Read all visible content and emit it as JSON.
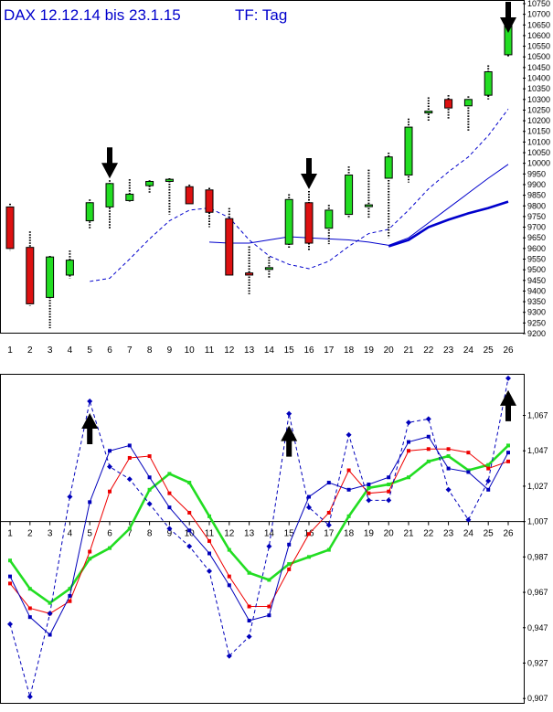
{
  "title": "DAX 12.12.14 bis 23.1.15",
  "timeframe": "TF: Tag",
  "colors": {
    "up": "#22dd22",
    "down": "#dd1111",
    "ma": "#0000cc",
    "osc_blue": "#0000bb",
    "osc_red": "#ee0000",
    "osc_green": "#22dd22",
    "arrow": "#000000"
  },
  "chart_data": [
    {
      "type": "candlestick",
      "title": "DAX 12.12.14 bis 23.1.15",
      "subtitle": "TF: Tag",
      "x": [
        1,
        2,
        3,
        4,
        5,
        6,
        7,
        8,
        9,
        10,
        11,
        12,
        13,
        14,
        15,
        16,
        17,
        18,
        19,
        20,
        21,
        22,
        23,
        24,
        25,
        26
      ],
      "x_ticks": [
        "1",
        "2",
        "3",
        "4",
        "5",
        "6",
        "7",
        "8",
        "9",
        "10",
        "11",
        "12",
        "13",
        "14",
        "15",
        "16",
        "17",
        "18",
        "19",
        "20",
        "21",
        "22",
        "23",
        "24",
        "25",
        "26"
      ],
      "ylim": [
        9200,
        10750
      ],
      "y_ticks": [
        "9200",
        "9250",
        "9300",
        "9350",
        "9400",
        "9450",
        "9500",
        "9550",
        "9600",
        "9650",
        "9700",
        "9750",
        "9800",
        "9850",
        "9900",
        "9950",
        "10000",
        "10050",
        "10100",
        "10150",
        "10200",
        "10250",
        "10300",
        "10350",
        "10400",
        "10450",
        "10500",
        "10550",
        "10600",
        "10650",
        "10700",
        "10750"
      ],
      "candles": [
        {
          "x": 1,
          "open": 9795,
          "high": 9810,
          "low": 9590,
          "close": 9600
        },
        {
          "x": 2,
          "open": 9605,
          "high": 9680,
          "low": 9330,
          "close": 9340
        },
        {
          "x": 3,
          "open": 9370,
          "high": 9565,
          "low": 9225,
          "close": 9560
        },
        {
          "x": 4,
          "open": 9475,
          "high": 9590,
          "low": 9460,
          "close": 9545
        },
        {
          "x": 5,
          "open": 9730,
          "high": 9830,
          "low": 9690,
          "close": 9815
        },
        {
          "x": 6,
          "open": 9795,
          "high": 9920,
          "low": 9690,
          "close": 9905
        },
        {
          "x": 7,
          "open": 9825,
          "high": 9925,
          "low": 9820,
          "close": 9855
        },
        {
          "x": 8,
          "open": 9895,
          "high": 9920,
          "low": 9860,
          "close": 9915
        },
        {
          "x": 9,
          "open": 9915,
          "high": 9930,
          "low": 9760,
          "close": 9925
        },
        {
          "x": 10,
          "open": 9890,
          "high": 9900,
          "low": 9810,
          "close": 9810
        },
        {
          "x": 11,
          "open": 9875,
          "high": 9885,
          "low": 9700,
          "close": 9770
        },
        {
          "x": 12,
          "open": 9740,
          "high": 9790,
          "low": 9470,
          "close": 9475
        },
        {
          "x": 13,
          "open": 9485,
          "high": 9610,
          "low": 9385,
          "close": 9475
        },
        {
          "x": 14,
          "open": 9510,
          "high": 9560,
          "low": 9460,
          "close": 9510
        },
        {
          "x": 15,
          "open": 9620,
          "high": 9855,
          "low": 9600,
          "close": 9830
        },
        {
          "x": 16,
          "open": 9815,
          "high": 9870,
          "low": 9590,
          "close": 9625
        },
        {
          "x": 17,
          "open": 9695,
          "high": 9805,
          "low": 9620,
          "close": 9780
        },
        {
          "x": 18,
          "open": 9760,
          "high": 9985,
          "low": 9740,
          "close": 9945
        },
        {
          "x": 19,
          "open": 9805,
          "high": 9970,
          "low": 9740,
          "close": 9805
        },
        {
          "x": 20,
          "open": 9930,
          "high": 10050,
          "low": 9650,
          "close": 10030
        },
        {
          "x": 21,
          "open": 9945,
          "high": 10210,
          "low": 9910,
          "close": 10170
        },
        {
          "x": 22,
          "open": 10240,
          "high": 10310,
          "low": 10200,
          "close": 10245
        },
        {
          "x": 23,
          "open": 10300,
          "high": 10320,
          "low": 10210,
          "close": 10260
        },
        {
          "x": 24,
          "open": 10270,
          "high": 10315,
          "low": 10150,
          "close": 10300
        },
        {
          "x": 25,
          "open": 10320,
          "high": 10460,
          "low": 10300,
          "close": 10430
        },
        {
          "x": 26,
          "open": 10510,
          "high": 10715,
          "low": 10500,
          "close": 10650
        }
      ],
      "series": [
        {
          "style": "dashed",
          "color": "#0000cc",
          "x": [
            5,
            6,
            7,
            8,
            9,
            10,
            11,
            12,
            13,
            14,
            15,
            16,
            17,
            18,
            19,
            20,
            21,
            22,
            23,
            24,
            25,
            26
          ],
          "values": [
            9445,
            9460,
            9550,
            9645,
            9730,
            9780,
            9790,
            9745,
            9640,
            9565,
            9525,
            9505,
            9540,
            9610,
            9670,
            9690,
            9780,
            9880,
            9960,
            10030,
            10130,
            10255
          ]
        },
        {
          "style": "thin",
          "color": "#0000cc",
          "x": [
            11,
            12,
            13,
            14,
            15,
            16,
            17,
            18,
            19,
            20,
            21,
            22,
            23,
            24,
            25,
            26
          ],
          "values": [
            9630,
            9625,
            9625,
            9640,
            9655,
            9650,
            9645,
            9640,
            9630,
            9615,
            9650,
            9720,
            9790,
            9860,
            9930,
            9995
          ]
        },
        {
          "style": "thick",
          "color": "#0000cc",
          "x": [
            20,
            21,
            22,
            23,
            24,
            25,
            26
          ],
          "values": [
            9610,
            9640,
            9700,
            9735,
            9765,
            9790,
            9820
          ]
        }
      ],
      "markers": [
        {
          "type": "arrow-down",
          "x": 6
        },
        {
          "type": "arrow-down",
          "x": 16
        },
        {
          "type": "arrow-down",
          "x": 26
        }
      ]
    },
    {
      "type": "line",
      "x": [
        1,
        2,
        3,
        4,
        5,
        6,
        7,
        8,
        9,
        10,
        11,
        12,
        13,
        14,
        15,
        16,
        17,
        18,
        19,
        20,
        21,
        22,
        23,
        24,
        25,
        26
      ],
      "x_ticks": [
        "1",
        "2",
        "3",
        "4",
        "5",
        "6",
        "7",
        "8",
        "9",
        "10",
        "11",
        "12",
        "13",
        "14",
        "15",
        "16",
        "17",
        "18",
        "19",
        "20",
        "21",
        "22",
        "23",
        "24",
        "25",
        "26"
      ],
      "ylim": [
        0.904,
        1.09
      ],
      "y_ticks": [
        "0,907",
        "0,927",
        "0,947",
        "0,967",
        "0,987",
        "1,007",
        "1,027",
        "1,047",
        "1,067"
      ],
      "baseline": 1.007,
      "series": [
        {
          "style": "dashed-markers",
          "color": "#0000bb",
          "values": [
            0.949,
            0.908,
            0.955,
            1.021,
            1.075,
            1.038,
            1.031,
            1.017,
            1.003,
            0.993,
            0.979,
            0.931,
            0.942,
            0.993,
            1.068,
            1.015,
            1.005,
            1.056,
            1.019,
            1.019,
            1.063,
            1.065,
            1.025,
            1.008,
            1.03,
            1.088
          ]
        },
        {
          "style": "solid-markers",
          "color": "#0000bb",
          "values": [
            0.976,
            0.953,
            0.943,
            0.965,
            1.018,
            1.047,
            1.05,
            1.032,
            1.015,
            1.002,
            0.989,
            0.971,
            0.951,
            0.954,
            0.994,
            1.021,
            1.029,
            1.025,
            1.028,
            1.032,
            1.052,
            1.055,
            1.037,
            1.035,
            1.025,
            1.046
          ]
        },
        {
          "style": "solid-markers",
          "color": "#ee0000",
          "values": [
            0.972,
            0.958,
            0.955,
            0.962,
            0.99,
            1.024,
            1.043,
            1.044,
            1.023,
            1.012,
            0.996,
            0.976,
            0.959,
            0.959,
            0.98,
            1.0,
            1.012,
            1.036,
            1.023,
            1.024,
            1.047,
            1.048,
            1.048,
            1.046,
            1.037,
            1.041
          ]
        },
        {
          "style": "thick",
          "color": "#22dd22",
          "values": [
            0.985,
            0.969,
            0.961,
            0.969,
            0.986,
            0.992,
            1.003,
            1.025,
            1.034,
            1.029,
            1.01,
            0.991,
            0.978,
            0.974,
            0.983,
            0.987,
            0.991,
            1.01,
            1.026,
            1.028,
            1.032,
            1.041,
            1.044,
            1.036,
            1.039,
            1.05
          ]
        }
      ],
      "markers": [
        {
          "type": "arrow-up",
          "x": 5
        },
        {
          "type": "arrow-up",
          "x": 15
        },
        {
          "type": "arrow-up",
          "x": 26
        }
      ]
    }
  ]
}
